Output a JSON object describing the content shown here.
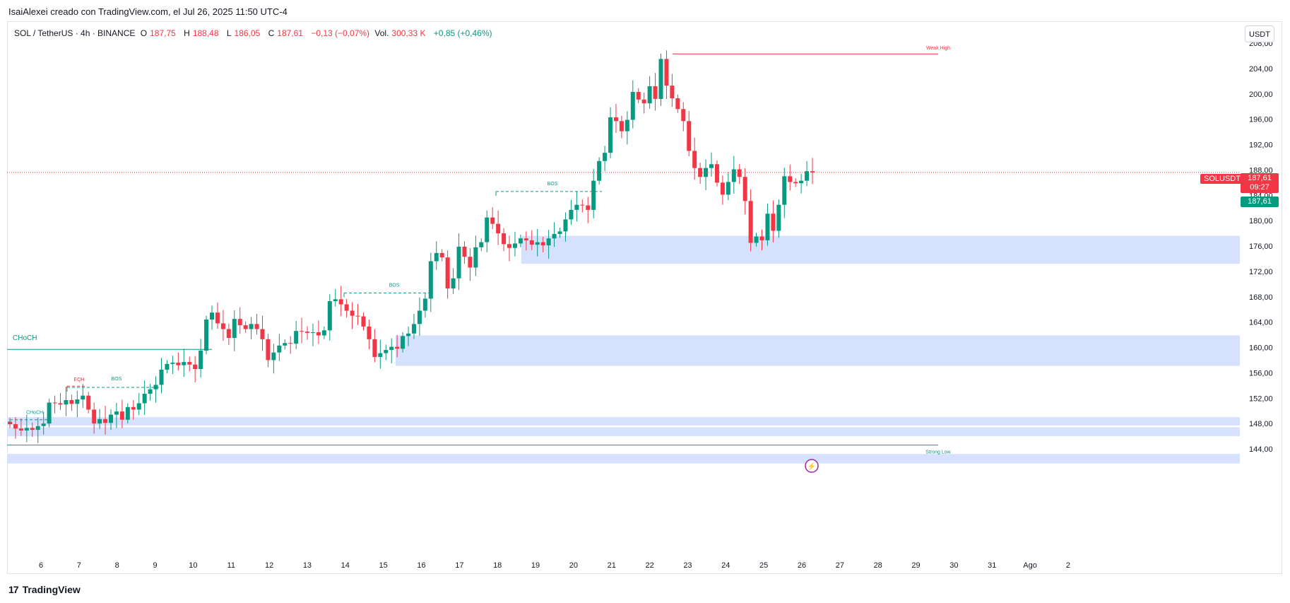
{
  "header": {
    "credit": "IsaiAlexei creado con TradingView.com, el Jul 26, 2025 11:50 UTC-4"
  },
  "symbol": {
    "name": "SOL / TetherUS · 4h · BINANCE",
    "open_label": "O",
    "open": "187,75",
    "high_label": "H",
    "high": "188,48",
    "low_label": "L",
    "low": "186,05",
    "close_label": "C",
    "close": "187,61",
    "change": "−0,13 (−0,07%)",
    "vol_label": "Vol.",
    "vol": "300,33 K",
    "vol_change": "+0,85 (+0,46%)"
  },
  "currency_button": "USDT",
  "price_labels": {
    "ticker_tag": "SOLUSDT",
    "last_price": "187,61",
    "countdown": "09:27",
    "last_price_green": "187,61"
  },
  "footer": {
    "logo_mark": "17",
    "logo_text": "TradingView"
  },
  "colors": {
    "up": "#089981",
    "down": "#f23645",
    "zone": "#d6e2fd",
    "grid": "#e0e3eb"
  },
  "icons": {
    "footer": "tradingview-logo-icon",
    "event": "lightning-icon"
  },
  "chart_data": {
    "type": "candlestick",
    "symbol": "SOLUSDT",
    "timeframe": "4h",
    "ylim": [
      142,
      210
    ],
    "y_ticks": [
      "208,00",
      "204,00",
      "200,00",
      "196,00",
      "192,00",
      "188,00",
      "184,00",
      "180,00",
      "176,00",
      "172,00",
      "168,00",
      "164,00",
      "160,00",
      "156,00",
      "152,00",
      "148,00",
      "144,00"
    ],
    "x_ticks": [
      "6",
      "7",
      "8",
      "9",
      "10",
      "11",
      "12",
      "13",
      "14",
      "15",
      "16",
      "17",
      "18",
      "19",
      "20",
      "21",
      "22",
      "23",
      "24",
      "25",
      "26",
      "27",
      "28",
      "29",
      "30",
      "31",
      "Ago",
      "2"
    ],
    "zones": [
      {
        "from": 173.2,
        "to": 177.6
      },
      {
        "from": 157.1,
        "to": 161.9
      },
      {
        "from": 147.7,
        "to": 149.0
      },
      {
        "from": 146.0,
        "to": 147.4
      },
      {
        "from": 141.7,
        "to": 143.2
      }
    ],
    "annotations": [
      {
        "label": "Weak High",
        "price": 206.3,
        "color": "#f23645"
      },
      {
        "label": "Strong Low",
        "price": 144.6,
        "color": "#089981"
      },
      {
        "label": "CHoCH",
        "price": 159.7,
        "color": "#089981"
      },
      {
        "label": "BOS",
        "price": 168.6,
        "color": "#089981"
      },
      {
        "label": "BOS",
        "price": 184.6,
        "color": "#089981"
      },
      {
        "label": "BOS",
        "price": 153.7,
        "color": "#089981"
      },
      {
        "label": "EQH",
        "price": 153.9,
        "color": "#f23645"
      },
      {
        "label": "CHoCH",
        "price": 148.6,
        "color": "#089981"
      }
    ],
    "last_price": 187.61,
    "closes": [
      147.9,
      147.2,
      146.9,
      147.3,
      147.0,
      147.6,
      148.0,
      151.3,
      151.2,
      151.0,
      151.7,
      151.1,
      151.8,
      152.4,
      150.2,
      148.0,
      148.7,
      148.1,
      149.4,
      149.9,
      148.6,
      150.6,
      150.2,
      151.2,
      152.7,
      153.4,
      154.1,
      156.5,
      157.4,
      157.6,
      157.2,
      157.7,
      157.3,
      156.6,
      159.5,
      164.4,
      165.5,
      163.8,
      162.9,
      161.5,
      164.5,
      163.5,
      162.9,
      163.7,
      162.9,
      161.3,
      158.0,
      159.2,
      160.3,
      160.7,
      160.6,
      162.6,
      162.5,
      162.3,
      162.4,
      161.9,
      162.7,
      167.3,
      167.6,
      166.8,
      165.8,
      165.0,
      164.9,
      163.3,
      161.3,
      158.5,
      159.1,
      159.6,
      160.1,
      159.8,
      161.8,
      162.2,
      163.7,
      165.8,
      167.7,
      173.6,
      174.9,
      174.2,
      169.3,
      170.9,
      175.9,
      174.3,
      172.6,
      175.8,
      176.6,
      180.5,
      179.5,
      178.0,
      176.3,
      175.7,
      176.4,
      177.2,
      176.9,
      176.2,
      176.6,
      176.1,
      177.2,
      177.9,
      178.3,
      180.2,
      181.7,
      182.5,
      182.4,
      181.7,
      186.3,
      189.4,
      190.7,
      196.3,
      195.7,
      194.1,
      195.9,
      200.3,
      199.1,
      198.5,
      201.2,
      199.2,
      205.5,
      201.3,
      199.3,
      197.6,
      195.7,
      191.0,
      188.3,
      186.9,
      188.3,
      188.9,
      186.0,
      184.1,
      186.1,
      188.1,
      186.9,
      183.1,
      176.5,
      177.5,
      176.9,
      181.1,
      178.4,
      182.5,
      187.0,
      186.1,
      185.9,
      186.3,
      187.8,
      187.6
    ]
  }
}
